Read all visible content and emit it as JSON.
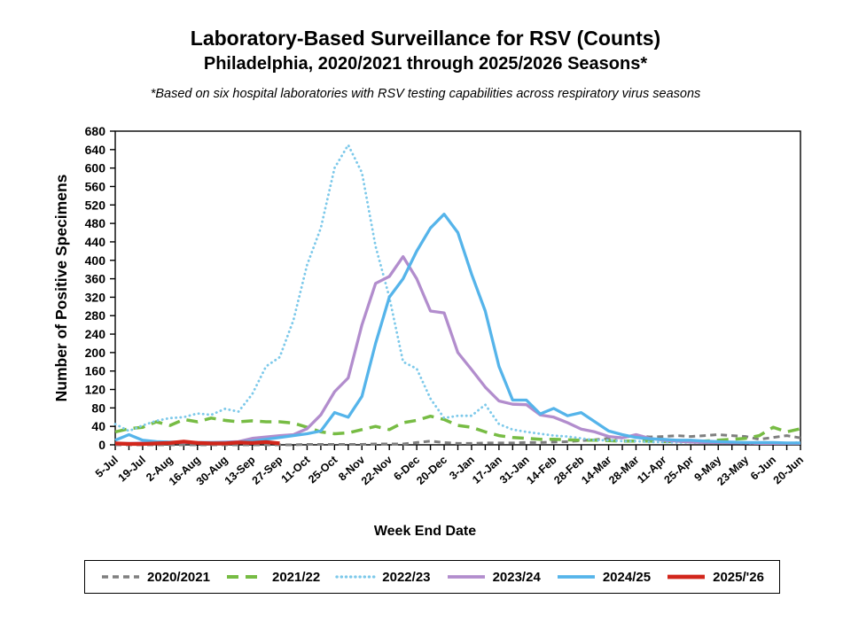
{
  "header": {
    "title_line1": "Laboratory-Based Surveillance for RSV (Counts)",
    "title_line2": "Philadelphia, 2020/2021 through 2025/2026 Seasons*",
    "footnote": "*Based on six hospital laboratories with RSV testing capabilities across respiratory virus seasons"
  },
  "chart_data": {
    "type": "line",
    "title": "Laboratory-Based Surveillance for RSV (Counts) — Philadelphia, 2020/2021 through 2025/2026 Seasons*",
    "xlabel": "Week End Date",
    "ylabel": "Number of Positive Specimens",
    "ylim": [
      0,
      680
    ],
    "ytick_step": 40,
    "grid": false,
    "legend_position": "bottom",
    "n_weeks": 51,
    "weeks_per_label": 2,
    "x_tick_labels": [
      "5-Jul",
      "19-Jul",
      "2-Aug",
      "16-Aug",
      "30-Aug",
      "13-Sep",
      "27-Sep",
      "11-Oct",
      "25-Oct",
      "8-Nov",
      "22-Nov",
      "6-Dec",
      "20-Dec",
      "3-Jan",
      "17-Jan",
      "31-Jan",
      "14-Feb",
      "28-Feb",
      "14-Mar",
      "28-Mar",
      "11-Apr",
      "25-Apr",
      "9-May",
      "23-May",
      "6-Jun",
      "20-Jun"
    ],
    "series": [
      {
        "name": "2020/2021",
        "color": "#7F7F7F",
        "style": "dashed",
        "dash": "7 5",
        "width": 3,
        "values": [
          0,
          0,
          0,
          0,
          0,
          0,
          0,
          0,
          0,
          0,
          0,
          0,
          0,
          0,
          1,
          1,
          1,
          1,
          1,
          2,
          2,
          2,
          5,
          8,
          5,
          3,
          3,
          4,
          4,
          4,
          5,
          5,
          6,
          7,
          9,
          11,
          14,
          16,
          20,
          17,
          18,
          20,
          18,
          20,
          22,
          20,
          18,
          12,
          16,
          20,
          15
        ]
      },
      {
        "name": "2021/22",
        "color": "#77BC44",
        "style": "dashed",
        "dash": "13 8",
        "width": 3.5,
        "values": [
          28,
          35,
          38,
          50,
          42,
          55,
          50,
          58,
          53,
          50,
          52,
          50,
          50,
          47,
          38,
          28,
          24,
          26,
          33,
          40,
          33,
          48,
          53,
          62,
          55,
          42,
          38,
          28,
          20,
          16,
          14,
          12,
          12,
          11,
          10,
          10,
          9,
          8,
          8,
          8,
          7,
          7,
          8,
          8,
          10,
          12,
          14,
          20,
          38,
          28,
          35
        ]
      },
      {
        "name": "2022/23",
        "color": "#7DC9EA",
        "style": "dotted",
        "dash": "0.2 5",
        "width": 2.8,
        "values": [
          45,
          30,
          42,
          52,
          58,
          60,
          68,
          65,
          78,
          72,
          110,
          170,
          190,
          270,
          390,
          470,
          600,
          650,
          590,
          430,
          320,
          180,
          165,
          100,
          58,
          63,
          63,
          87,
          45,
          33,
          28,
          24,
          20,
          18,
          14,
          10,
          10,
          8,
          8,
          6,
          6,
          5,
          5,
          4,
          4,
          4,
          3,
          3,
          4,
          4,
          5
        ]
      },
      {
        "name": "2023/24",
        "color": "#B28DCD",
        "style": "solid",
        "dash": "",
        "width": 3.3,
        "values": [
          3,
          3,
          4,
          4,
          5,
          5,
          5,
          5,
          6,
          7,
          14,
          17,
          20,
          22,
          35,
          65,
          115,
          145,
          260,
          350,
          365,
          408,
          360,
          290,
          286,
          200,
          163,
          125,
          95,
          88,
          87,
          65,
          60,
          48,
          34,
          28,
          18,
          15,
          22,
          14,
          10,
          8,
          6,
          5,
          5,
          4,
          4,
          3,
          3,
          3,
          3
        ]
      },
      {
        "name": "2024/25",
        "color": "#55B4EA",
        "style": "solid",
        "dash": "",
        "width": 3.3,
        "values": [
          10,
          22,
          10,
          7,
          6,
          6,
          5,
          5,
          5,
          6,
          8,
          12,
          16,
          20,
          24,
          30,
          70,
          60,
          105,
          220,
          320,
          360,
          420,
          470,
          500,
          460,
          370,
          290,
          170,
          97,
          97,
          67,
          79,
          63,
          70,
          50,
          30,
          22,
          16,
          13,
          12,
          10,
          10,
          8,
          7,
          6,
          5,
          5,
          5,
          4,
          4
        ]
      },
      {
        "name": "2025/'26",
        "color": "#D2261B",
        "style": "solid",
        "dash": "",
        "width": 4.2,
        "values": [
          3,
          2,
          2,
          3,
          4,
          7,
          4,
          3,
          3,
          5,
          4,
          6,
          3
        ]
      }
    ]
  }
}
